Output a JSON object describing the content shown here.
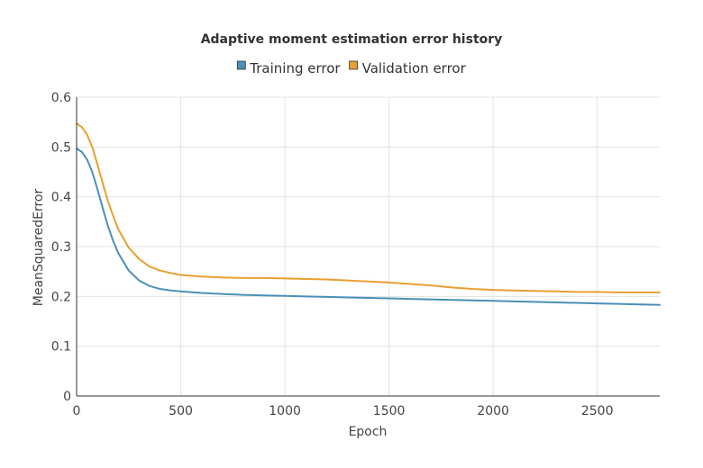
{
  "chart_data": {
    "type": "line",
    "title": "Adaptive moment estimation error history",
    "xlabel": "Epoch",
    "ylabel": "MeanSquaredError",
    "xlim": [
      0,
      2800
    ],
    "ylim": [
      0,
      0.6
    ],
    "x_ticks": [
      "0",
      "500",
      "1000",
      "1500",
      "2000",
      "2500"
    ],
    "y_ticks": [
      "0",
      "0.1",
      "0.2",
      "0.3",
      "0.4",
      "0.5",
      "0.6"
    ],
    "x_tick_values": [
      0,
      500,
      1000,
      1500,
      2000,
      2500
    ],
    "y_tick_values": [
      0,
      0.1,
      0.2,
      0.3,
      0.4,
      0.5,
      0.6
    ],
    "grid": true,
    "legend_position": "top-center",
    "x": [
      0,
      25,
      50,
      75,
      100,
      125,
      150,
      175,
      200,
      250,
      300,
      350,
      400,
      450,
      500,
      600,
      700,
      800,
      900,
      1000,
      1100,
      1200,
      1300,
      1400,
      1500,
      1600,
      1700,
      1800,
      1900,
      2000,
      2100,
      2200,
      2300,
      2400,
      2500,
      2600,
      2700,
      2800
    ],
    "series": [
      {
        "name": "Training error",
        "color": "#4a90b8",
        "values": [
          0.497,
          0.49,
          0.475,
          0.45,
          0.415,
          0.378,
          0.342,
          0.312,
          0.287,
          0.252,
          0.232,
          0.221,
          0.215,
          0.212,
          0.21,
          0.207,
          0.205,
          0.203,
          0.202,
          0.201,
          0.2,
          0.199,
          0.198,
          0.197,
          0.196,
          0.195,
          0.194,
          0.193,
          0.192,
          0.191,
          0.19,
          0.189,
          0.188,
          0.187,
          0.186,
          0.185,
          0.184,
          0.183
        ]
      },
      {
        "name": "Validation error",
        "color": "#e8a030",
        "values": [
          0.547,
          0.54,
          0.525,
          0.5,
          0.465,
          0.428,
          0.392,
          0.362,
          0.335,
          0.298,
          0.275,
          0.26,
          0.252,
          0.247,
          0.243,
          0.24,
          0.238,
          0.237,
          0.237,
          0.236,
          0.235,
          0.234,
          0.232,
          0.23,
          0.228,
          0.225,
          0.222,
          0.218,
          0.215,
          0.213,
          0.212,
          0.211,
          0.21,
          0.209,
          0.209,
          0.208,
          0.208,
          0.208
        ]
      }
    ]
  }
}
